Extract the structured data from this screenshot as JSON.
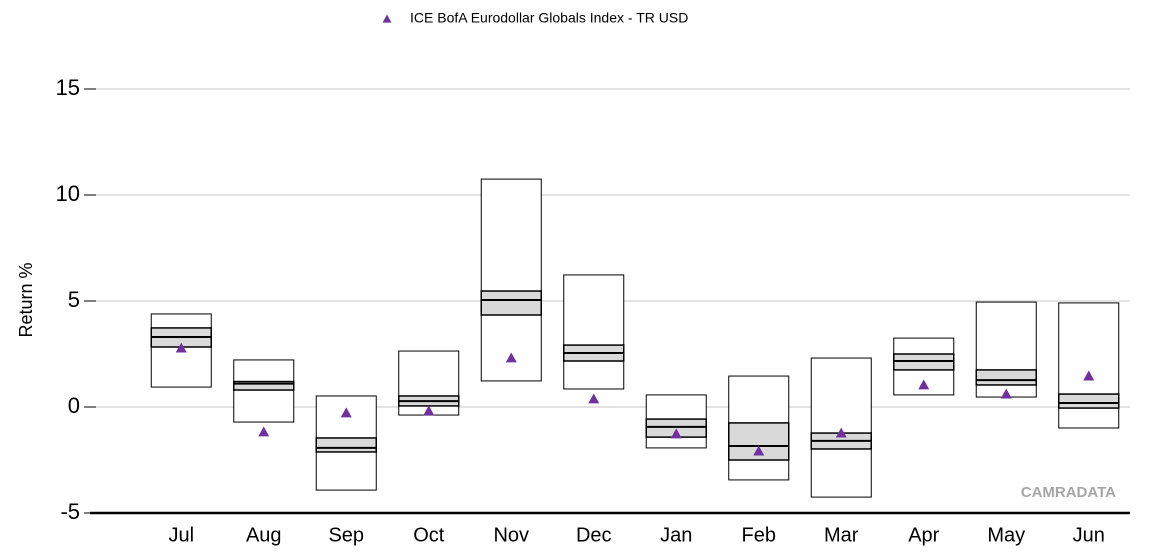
{
  "chart_data": {
    "type": "box",
    "legend_position": "top",
    "ylabel": "Return %",
    "watermark": "CAMRADATA",
    "categories": [
      "Jul",
      "Aug",
      "Sep",
      "Oct",
      "Nov",
      "Dec",
      "Jan",
      "Feb",
      "Mar",
      "Apr",
      "May",
      "Jun"
    ],
    "boxes": {
      "max": [
        4.39,
        2.22,
        0.52,
        2.64,
        10.75,
        6.23,
        0.57,
        1.46,
        2.31,
        3.25,
        4.95,
        4.91
      ],
      "upper": [
        3.73,
        1.2,
        -1.46,
        0.52,
        5.47,
        2.92,
        -0.57,
        -0.75,
        -1.23,
        2.5,
        1.75,
        0.61
      ],
      "median": [
        3.3,
        1.1,
        -1.93,
        0.28,
        5.05,
        2.55,
        -0.94,
        -1.84,
        -1.6,
        2.17,
        1.27,
        0.19
      ],
      "lower": [
        2.83,
        0.8,
        -2.12,
        0.05,
        4.34,
        2.17,
        -1.42,
        -2.5,
        -1.98,
        1.75,
        1.04,
        -0.05
      ],
      "min": [
        0.94,
        -0.71,
        -3.92,
        -0.38,
        1.23,
        0.85,
        -1.93,
        -3.44,
        -4.25,
        0.57,
        0.47,
        -0.99
      ],
      "color": "#d9d9d9"
    },
    "series": [
      {
        "name": "ICE BofA Eurodollar Globals Index - TR USD",
        "color": "#7030a0",
        "values": [
          2.78,
          -1.18,
          -0.28,
          -0.19,
          2.31,
          0.38,
          -1.27,
          -2.08,
          -1.23,
          1.04,
          0.61,
          1.46
        ]
      }
    ],
    "ylim": [
      -5,
      16.5
    ],
    "yticks": [
      -5,
      0,
      5,
      10,
      15
    ],
    "grid": true
  }
}
